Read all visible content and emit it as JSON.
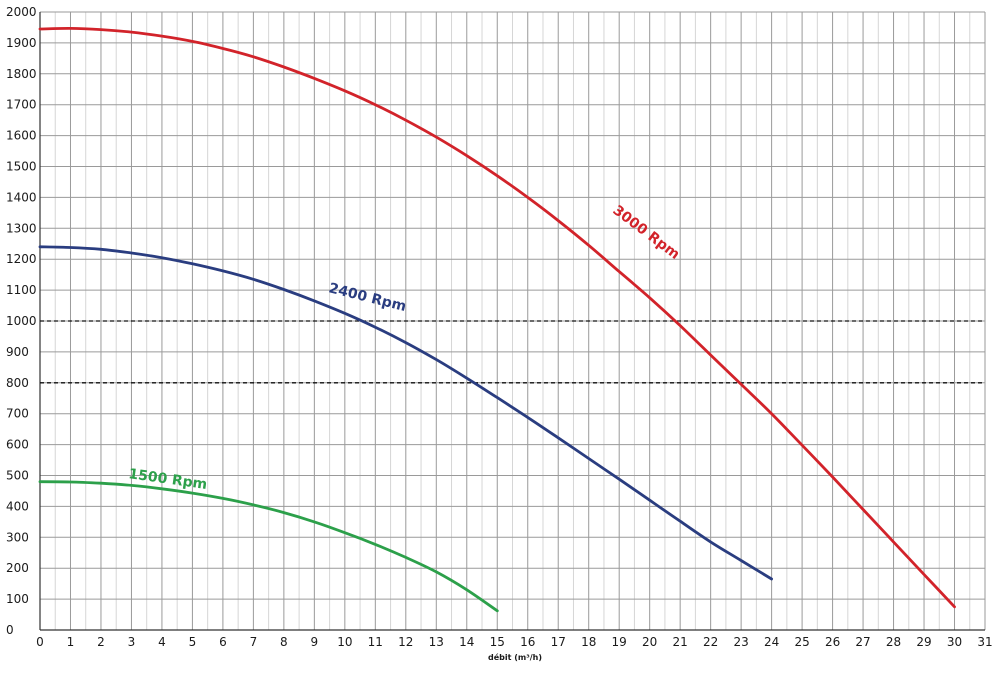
{
  "chart_data": {
    "type": "line",
    "title": "",
    "xlabel": "débit (m³/h)",
    "ylabel": "",
    "xlim": [
      0,
      31
    ],
    "ylim": [
      0,
      2000
    ],
    "x_ticks": [
      0,
      1,
      2,
      3,
      4,
      5,
      6,
      7,
      8,
      9,
      10,
      11,
      12,
      13,
      14,
      15,
      16,
      17,
      18,
      19,
      20,
      21,
      22,
      23,
      24,
      25,
      26,
      27,
      28,
      29,
      30,
      31
    ],
    "y_ticks": [
      0,
      100,
      200,
      300,
      400,
      500,
      600,
      700,
      800,
      900,
      1000,
      1100,
      1200,
      1300,
      1400,
      1500,
      1600,
      1700,
      1800,
      1900,
      2000
    ],
    "grid": true,
    "reference_lines": [
      {
        "y": 1000,
        "style": "dashed"
      },
      {
        "y": 800,
        "style": "dashed"
      }
    ],
    "series": [
      {
        "name": "3000 Rpm",
        "color": "#d2232a",
        "x": [
          0,
          1,
          2,
          3,
          4,
          5,
          6,
          7,
          8,
          9,
          10,
          11,
          12,
          13,
          14,
          15,
          16,
          17,
          18,
          19,
          20,
          21,
          22,
          23,
          24,
          25,
          26,
          27,
          28,
          29,
          30
        ],
        "y": [
          1945,
          1947,
          1943,
          1935,
          1922,
          1905,
          1882,
          1855,
          1822,
          1785,
          1745,
          1700,
          1650,
          1595,
          1535,
          1470,
          1400,
          1325,
          1245,
          1160,
          1075,
          985,
          890,
          795,
          700,
          598,
          495,
          390,
          285,
          180,
          75
        ]
      },
      {
        "name": "2400 Rpm",
        "color": "#2a3d80",
        "x": [
          0,
          1,
          2,
          3,
          4,
          5,
          6,
          7,
          8,
          9,
          10,
          11,
          12,
          13,
          14,
          15,
          16,
          17,
          18,
          19,
          20,
          21,
          22,
          23,
          24
        ],
        "y": [
          1240,
          1238,
          1232,
          1220,
          1205,
          1185,
          1162,
          1135,
          1102,
          1065,
          1025,
          980,
          930,
          875,
          815,
          752,
          688,
          622,
          555,
          488,
          420,
          352,
          285,
          225,
          165
        ]
      },
      {
        "name": "1500 Rpm",
        "color": "#2ca04a",
        "x": [
          0,
          1,
          2,
          3,
          4,
          5,
          6,
          7,
          8,
          9,
          10,
          11,
          12,
          13,
          14,
          15
        ],
        "y": [
          480,
          479,
          475,
          468,
          457,
          443,
          426,
          405,
          380,
          350,
          315,
          277,
          235,
          188,
          130,
          62
        ]
      }
    ],
    "series_labels": [
      {
        "text": "3000 Rpm",
        "color": "#d2232a"
      },
      {
        "text": "2400 Rpm",
        "color": "#2a3d80"
      },
      {
        "text": "1500 Rpm",
        "color": "#2ca04a"
      }
    ]
  }
}
